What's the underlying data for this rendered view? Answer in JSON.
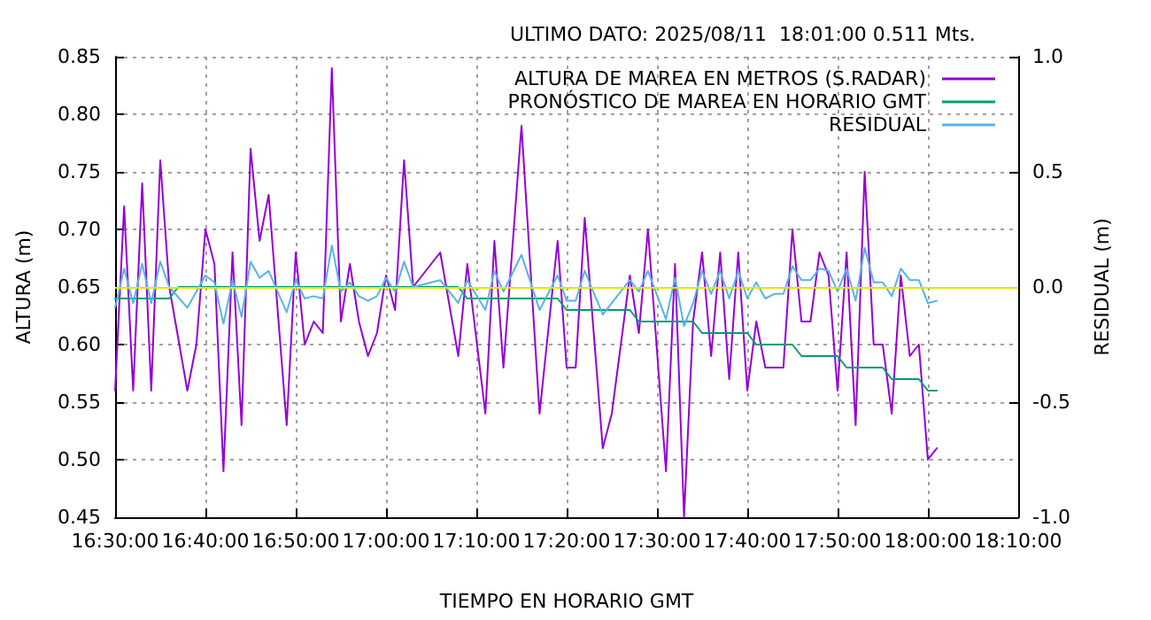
{
  "chart_data": {
    "type": "line",
    "title": "ULTIMO DATO: 2025/08/11  18:01:00 0.511 Mts.",
    "xlabel": "TIEMPO EN HORARIO GMT",
    "ylabel": "ALTURA (m)",
    "y2label": "RESIDUAL (m)",
    "xlim": [
      "2025-08-11T16:30",
      "2025-08-11T18:10"
    ],
    "xticks": [
      {
        "value": "2025-08-11T16:30",
        "label": "16:30:00"
      },
      {
        "value": "2025-08-11T16:40",
        "label": "16:40:00"
      },
      {
        "value": "2025-08-11T16:50",
        "label": "16:50:00"
      },
      {
        "value": "2025-08-11T17:00",
        "label": "17:00:00"
      },
      {
        "value": "2025-08-11T17:10",
        "label": "17:10:00"
      },
      {
        "value": "2025-08-11T17:20",
        "label": "17:20:00"
      },
      {
        "value": "2025-08-11T17:30",
        "label": "17:30:00"
      },
      {
        "value": "2025-08-11T17:40",
        "label": "17:40:00"
      },
      {
        "value": "2025-08-11T17:50",
        "label": "17:50:00"
      },
      {
        "value": "2025-08-11T18:00",
        "label": "18:00:00"
      },
      {
        "value": "2025-08-11T18:10",
        "label": "18:10:00"
      }
    ],
    "ylim": [
      0.45,
      0.85
    ],
    "yticks": [
      0.45,
      {
        "value": 0.5,
        "label": "0.50"
      },
      0.55,
      {
        "value": 0.6,
        "label": "0.60"
      },
      0.65,
      {
        "value": 0.7,
        "label": "0.70"
      },
      0.75,
      {
        "value": 0.8,
        "label": "0.80"
      },
      0.85
    ],
    "y2lim": [
      -1,
      1
    ],
    "y2ticks": [
      {
        "value": -1,
        "label": "-1.0"
      },
      -0.5,
      {
        "value": 0,
        "label": "0.0"
      },
      0.5,
      {
        "value": 1,
        "label": "1.0"
      }
    ],
    "grid": true,
    "legend": "top right",
    "marker": "none",
    "line_style": "solid",
    "ref_lines": [
      {
        "axis": "y2",
        "value": 0,
        "label": null,
        "color": "#e5e500"
      }
    ],
    "series": [
      {
        "name": "ALTURA DE MAREA EN METROS (S.RADAR)",
        "color": "#9400d3",
        "x": [
          "2025-08-11T16:30",
          "2025-08-11T16:31",
          "2025-08-11T16:32",
          "2025-08-11T16:33",
          "2025-08-11T16:34",
          "2025-08-11T16:35",
          "2025-08-11T16:36",
          "2025-08-11T16:38",
          "2025-08-11T16:39",
          "2025-08-11T16:40",
          "2025-08-11T16:41",
          "2025-08-11T16:42",
          "2025-08-11T16:43",
          "2025-08-11T16:44",
          "2025-08-11T16:45",
          "2025-08-11T16:46",
          "2025-08-11T16:47",
          "2025-08-11T16:49",
          "2025-08-11T16:50",
          "2025-08-11T16:51",
          "2025-08-11T16:52",
          "2025-08-11T16:53",
          "2025-08-11T16:54",
          "2025-08-11T16:55",
          "2025-08-11T16:56",
          "2025-08-11T16:57",
          "2025-08-11T16:58",
          "2025-08-11T16:59",
          "2025-08-11T17:00",
          "2025-08-11T17:01",
          "2025-08-11T17:02",
          "2025-08-11T17:03",
          "2025-08-11T17:06",
          "2025-08-11T17:08",
          "2025-08-11T17:09",
          "2025-08-11T17:11",
          "2025-08-11T17:12",
          "2025-08-11T17:13",
          "2025-08-11T17:15",
          "2025-08-11T17:17",
          "2025-08-11T17:19",
          "2025-08-11T17:20",
          "2025-08-11T17:21",
          "2025-08-11T17:22",
          "2025-08-11T17:24",
          "2025-08-11T17:25",
          "2025-08-11T17:27",
          "2025-08-11T17:28",
          "2025-08-11T17:29",
          "2025-08-11T17:31",
          "2025-08-11T17:32",
          "2025-08-11T17:33",
          "2025-08-11T17:34",
          "2025-08-11T17:35",
          "2025-08-11T17:36",
          "2025-08-11T17:37",
          "2025-08-11T17:38",
          "2025-08-11T17:39",
          "2025-08-11T17:40",
          "2025-08-11T17:41",
          "2025-08-11T17:42",
          "2025-08-11T17:43",
          "2025-08-11T17:44",
          "2025-08-11T17:45",
          "2025-08-11T17:46",
          "2025-08-11T17:47",
          "2025-08-11T17:48",
          "2025-08-11T17:49",
          "2025-08-11T17:50",
          "2025-08-11T17:51",
          "2025-08-11T17:52",
          "2025-08-11T17:53",
          "2025-08-11T17:54",
          "2025-08-11T17:55",
          "2025-08-11T17:56",
          "2025-08-11T17:57",
          "2025-08-11T17:58",
          "2025-08-11T17:59",
          "2025-08-11T18:00",
          "2025-08-11T18:01"
        ],
        "values": [
          0.56,
          0.72,
          0.56,
          0.74,
          0.56,
          0.76,
          0.65,
          0.56,
          0.6,
          0.7,
          0.67,
          0.49,
          0.68,
          0.53,
          0.77,
          0.69,
          0.73,
          0.53,
          0.68,
          0.6,
          0.62,
          0.61,
          0.84,
          0.62,
          0.67,
          0.62,
          0.59,
          0.61,
          0.66,
          0.63,
          0.76,
          0.65,
          0.68,
          0.59,
          0.67,
          0.54,
          0.69,
          0.58,
          0.79,
          0.54,
          0.69,
          0.58,
          0.58,
          0.71,
          0.51,
          0.54,
          0.66,
          0.61,
          0.7,
          0.49,
          0.67,
          0.45,
          0.62,
          0.68,
          0.59,
          0.68,
          0.57,
          0.68,
          0.56,
          0.62,
          0.58,
          0.58,
          0.58,
          0.7,
          0.62,
          0.62,
          0.68,
          0.66,
          0.56,
          0.68,
          0.53,
          0.75,
          0.6,
          0.6,
          0.54,
          0.66,
          0.59,
          0.6,
          0.5,
          0.51
        ]
      },
      {
        "name": "PRONÓSTICO DE MAREA EN HORARIO GMT",
        "color": "#009e73",
        "x": [
          "2025-08-11T16:30",
          "2025-08-11T16:36",
          "2025-08-11T16:37",
          "2025-08-11T17:08",
          "2025-08-11T17:09",
          "2025-08-11T17:19",
          "2025-08-11T17:20",
          "2025-08-11T17:27",
          "2025-08-11T17:28",
          "2025-08-11T17:34",
          "2025-08-11T17:35",
          "2025-08-11T17:40",
          "2025-08-11T17:41",
          "2025-08-11T17:45",
          "2025-08-11T17:46",
          "2025-08-11T17:50",
          "2025-08-11T17:51",
          "2025-08-11T17:55",
          "2025-08-11T17:56",
          "2025-08-11T17:59",
          "2025-08-11T18:00",
          "2025-08-11T18:01"
        ],
        "values": [
          0.64,
          0.64,
          0.65,
          0.65,
          0.64,
          0.64,
          0.63,
          0.63,
          0.62,
          0.62,
          0.61,
          0.61,
          0.6,
          0.6,
          0.59,
          0.59,
          0.58,
          0.58,
          0.57,
          0.57,
          0.56,
          0.56
        ]
      },
      {
        "name": "RESIDUAL",
        "color": "#56b4e9",
        "axis": "y2",
        "x": [
          "2025-08-11T16:30",
          "2025-08-11T16:31",
          "2025-08-11T16:32",
          "2025-08-11T16:33",
          "2025-08-11T16:34",
          "2025-08-11T16:35",
          "2025-08-11T16:36",
          "2025-08-11T16:38",
          "2025-08-11T16:40",
          "2025-08-11T16:41",
          "2025-08-11T16:42",
          "2025-08-11T16:43",
          "2025-08-11T16:44",
          "2025-08-11T16:45",
          "2025-08-11T16:46",
          "2025-08-11T16:47",
          "2025-08-11T16:49",
          "2025-08-11T16:50",
          "2025-08-11T16:51",
          "2025-08-11T16:52",
          "2025-08-11T16:53",
          "2025-08-11T16:54",
          "2025-08-11T16:55",
          "2025-08-11T16:56",
          "2025-08-11T16:57",
          "2025-08-11T16:58",
          "2025-08-11T16:59",
          "2025-08-11T17:00",
          "2025-08-11T17:01",
          "2025-08-11T17:02",
          "2025-08-11T17:03",
          "2025-08-11T17:06",
          "2025-08-11T17:08",
          "2025-08-11T17:09",
          "2025-08-11T17:11",
          "2025-08-11T17:12",
          "2025-08-11T17:13",
          "2025-08-11T17:15",
          "2025-08-11T17:17",
          "2025-08-11T17:19",
          "2025-08-11T17:20",
          "2025-08-11T17:21",
          "2025-08-11T17:22",
          "2025-08-11T17:24",
          "2025-08-11T17:27",
          "2025-08-11T17:28",
          "2025-08-11T17:29",
          "2025-08-11T17:31",
          "2025-08-11T17:32",
          "2025-08-11T17:33",
          "2025-08-11T17:34",
          "2025-08-11T17:35",
          "2025-08-11T17:36",
          "2025-08-11T17:37",
          "2025-08-11T17:38",
          "2025-08-11T17:39",
          "2025-08-11T17:40",
          "2025-08-11T17:41",
          "2025-08-11T17:42",
          "2025-08-11T17:43",
          "2025-08-11T17:44",
          "2025-08-11T17:45",
          "2025-08-11T17:46",
          "2025-08-11T17:47",
          "2025-08-11T17:48",
          "2025-08-11T17:49",
          "2025-08-11T17:50",
          "2025-08-11T17:51",
          "2025-08-11T17:52",
          "2025-08-11T17:53",
          "2025-08-11T17:54",
          "2025-08-11T17:55",
          "2025-08-11T17:56",
          "2025-08-11T17:57",
          "2025-08-11T17:58",
          "2025-08-11T17:59",
          "2025-08-11T18:00",
          "2025-08-11T18:01"
        ],
        "values": [
          -0.09,
          0.08,
          -0.07,
          0.1,
          -0.07,
          0.11,
          0.0,
          -0.09,
          0.05,
          0.02,
          -0.16,
          0.03,
          -0.13,
          0.11,
          0.04,
          0.07,
          -0.11,
          0.03,
          -0.05,
          -0.04,
          -0.05,
          0.18,
          -0.02,
          0.02,
          -0.04,
          -0.06,
          -0.04,
          0.04,
          -0.02,
          0.11,
          0.0,
          0.03,
          -0.07,
          0.03,
          -0.1,
          0.07,
          -0.02,
          0.14,
          -0.1,
          0.05,
          -0.06,
          -0.06,
          0.07,
          -0.12,
          0.03,
          -0.02,
          0.07,
          -0.14,
          0.04,
          -0.17,
          -0.07,
          0.07,
          -0.03,
          0.07,
          -0.05,
          0.07,
          -0.05,
          0.02,
          -0.05,
          -0.03,
          -0.03,
          0.09,
          0.03,
          0.03,
          0.08,
          0.07,
          -0.02,
          0.08,
          -0.06,
          0.17,
          0.02,
          0.02,
          -0.04,
          0.08,
          0.03,
          0.03,
          -0.07,
          -0.06
        ]
      }
    ]
  }
}
